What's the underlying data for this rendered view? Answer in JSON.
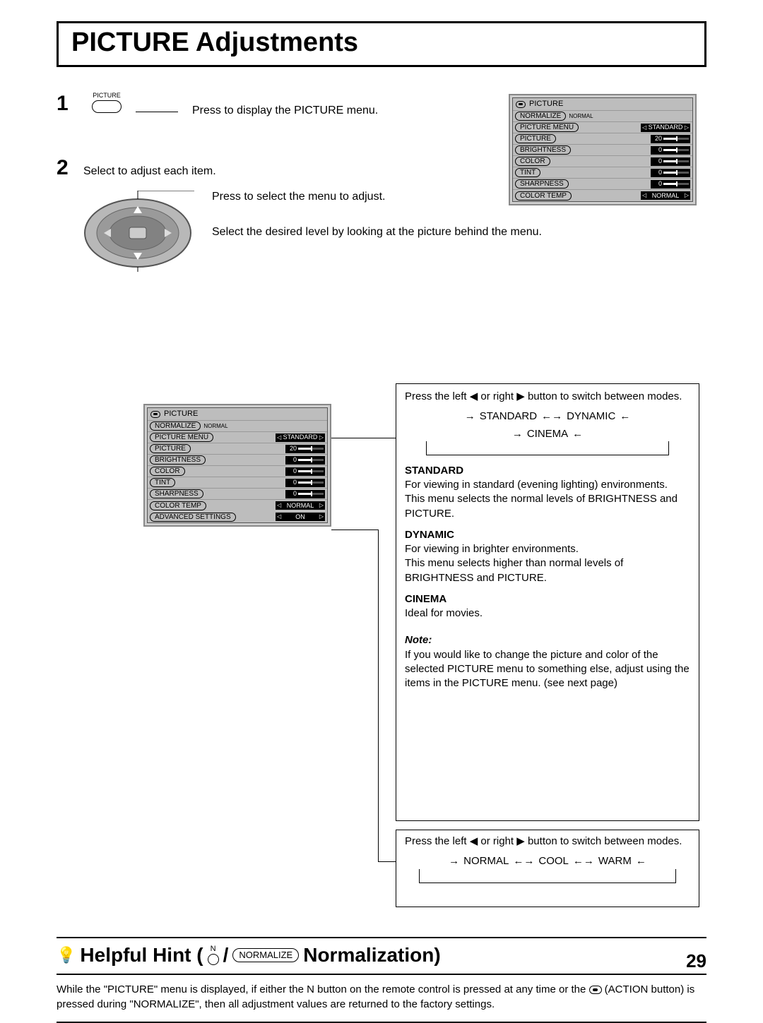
{
  "title": "PICTURE Adjustments",
  "step1": {
    "num": "1",
    "button_label": "PICTURE",
    "text": "Press to display the PICTURE menu."
  },
  "step2": {
    "num": "2",
    "line1": "Select to adjust each item.",
    "text1": "Press to select the menu to adjust.",
    "text2": "Select the desired level by looking at the picture behind the menu."
  },
  "menu": {
    "header": "PICTURE",
    "normalize": "NORMALIZE",
    "normalize_val": "NORMAL",
    "rows": [
      {
        "label": "PICTURE  MENU",
        "type": "text",
        "val": "STANDARD"
      },
      {
        "label": "PICTURE",
        "type": "bar",
        "val": "20"
      },
      {
        "label": "BRIGHTNESS",
        "type": "bar",
        "val": "0"
      },
      {
        "label": "COLOR",
        "type": "bar",
        "val": "0"
      },
      {
        "label": "TINT",
        "type": "bar",
        "val": "0"
      },
      {
        "label": "SHARPNESS",
        "type": "bar",
        "val": "0"
      },
      {
        "label": "COLOR  TEMP",
        "type": "text",
        "val": "NORMAL"
      }
    ],
    "advanced": {
      "label": "ADVANCED  SETTINGS",
      "val": "ON"
    }
  },
  "box1": {
    "intro": "Press the left ◀ or right ▶ button to switch between modes.",
    "cycle_top": [
      "STANDARD",
      "DYNAMIC"
    ],
    "cycle_bottom": "CINEMA",
    "standard_head": "STANDARD",
    "standard_body1": "For viewing in standard (evening lighting) environments.",
    "standard_body2": "This menu selects the normal levels of BRIGHTNESS and PICTURE.",
    "dynamic_head": "DYNAMIC",
    "dynamic_body1": "For viewing in brighter environments.",
    "dynamic_body2": "This menu selects higher than normal levels of BRIGHTNESS and PICTURE.",
    "cinema_head": "CINEMA",
    "cinema_body": "Ideal for movies.",
    "note_head": "Note:",
    "note_body": "If you would like to change the picture and color of the selected PICTURE menu to something else, adjust using the items in the PICTURE menu. (see next page)"
  },
  "box2": {
    "intro": "Press the left ◀ or right ▶ button to switch between modes.",
    "cycle": [
      "NORMAL",
      "COOL",
      "WARM"
    ]
  },
  "hint": {
    "prefix": "Helpful Hint (",
    "n_label": "N",
    "sep": "/",
    "norm": "NORMALIZE",
    "suffix": "Normalization)",
    "body_a": "While the \"PICTURE\" menu is displayed, if either the N button on the remote control is pressed at any time or the ",
    "body_b": " (ACTION button) is pressed during \"NORMALIZE\", then all adjustment values are returned to the factory settings."
  },
  "page_number": "29",
  "colors": {
    "black": "#000000",
    "grey_panel": "#bdbdbd"
  }
}
